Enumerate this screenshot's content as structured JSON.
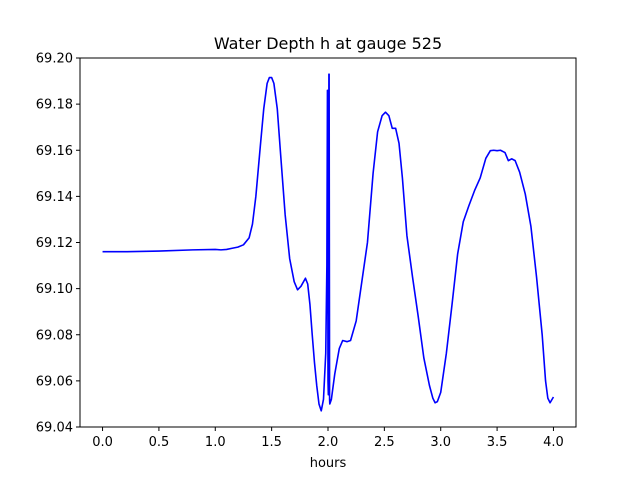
{
  "chart_data": {
    "type": "line",
    "title": "Water Depth h at gauge 525",
    "xlabel": "hours",
    "ylabel": "",
    "xlim": [
      -0.2,
      4.2
    ],
    "ylim": [
      69.04,
      69.2
    ],
    "xticks": [
      0.0,
      0.5,
      1.0,
      1.5,
      2.0,
      2.5,
      3.0,
      3.5,
      4.0
    ],
    "xtick_labels": [
      "0.0",
      "0.5",
      "1.0",
      "1.5",
      "2.0",
      "2.5",
      "3.0",
      "3.5",
      "4.0"
    ],
    "yticks": [
      69.04,
      69.06,
      69.08,
      69.1,
      69.12,
      69.14,
      69.16,
      69.18,
      69.2
    ],
    "ytick_labels": [
      "69.04",
      "69.06",
      "69.08",
      "69.10",
      "69.12",
      "69.14",
      "69.16",
      "69.18",
      "69.20"
    ],
    "grid": false,
    "legend": "none",
    "series": [
      {
        "color": "#0000ff",
        "x": [
          0.0,
          0.2,
          0.5,
          0.8,
          1.0,
          1.05,
          1.1,
          1.15,
          1.2,
          1.25,
          1.3,
          1.33,
          1.36,
          1.4,
          1.43,
          1.46,
          1.48,
          1.5,
          1.52,
          1.55,
          1.58,
          1.62,
          1.66,
          1.7,
          1.73,
          1.76,
          1.8,
          1.82,
          1.84,
          1.86,
          1.88,
          1.9,
          1.92,
          1.94,
          1.96,
          1.98,
          1.99,
          1.995,
          2.0,
          2.003,
          2.006,
          2.008,
          2.01,
          2.012,
          2.014,
          2.016,
          2.03,
          2.06,
          2.1,
          2.13,
          2.17,
          2.2,
          2.25,
          2.3,
          2.35,
          2.4,
          2.44,
          2.48,
          2.51,
          2.54,
          2.57,
          2.6,
          2.63,
          2.66,
          2.7,
          2.75,
          2.8,
          2.85,
          2.9,
          2.93,
          2.95,
          2.97,
          3.0,
          3.05,
          3.1,
          3.15,
          3.2,
          3.25,
          3.3,
          3.35,
          3.4,
          3.44,
          3.47,
          3.5,
          3.53,
          3.57,
          3.6,
          3.63,
          3.66,
          3.7,
          3.75,
          3.8,
          3.85,
          3.9,
          3.93,
          3.95,
          3.97,
          4.0
        ],
        "y": [
          69.116,
          69.116,
          69.1163,
          69.1168,
          69.117,
          69.1168,
          69.117,
          69.1175,
          69.118,
          69.119,
          69.122,
          69.128,
          69.14,
          69.162,
          69.178,
          69.189,
          69.1915,
          69.1915,
          69.189,
          69.178,
          69.158,
          69.132,
          69.113,
          69.103,
          69.0995,
          69.101,
          69.1045,
          69.102,
          69.093,
          69.08,
          69.068,
          69.058,
          69.05,
          69.047,
          69.052,
          69.072,
          69.11,
          69.186,
          69.06,
          69.054,
          69.13,
          69.193,
          69.193,
          69.12,
          69.052,
          69.05,
          69.052,
          69.063,
          69.074,
          69.0775,
          69.077,
          69.0775,
          69.086,
          69.103,
          69.12,
          69.15,
          69.168,
          69.175,
          69.1765,
          69.175,
          69.1695,
          69.1695,
          69.163,
          69.148,
          69.123,
          69.105,
          69.088,
          69.07,
          69.058,
          69.0525,
          69.0505,
          69.051,
          69.055,
          69.072,
          69.093,
          69.115,
          69.129,
          69.136,
          69.1425,
          69.148,
          69.1565,
          69.1598,
          69.16,
          69.1598,
          69.16,
          69.159,
          69.1555,
          69.1563,
          69.1555,
          69.1505,
          69.141,
          69.127,
          69.105,
          69.08,
          69.06,
          69.0525,
          69.0505,
          69.053
        ]
      }
    ]
  }
}
